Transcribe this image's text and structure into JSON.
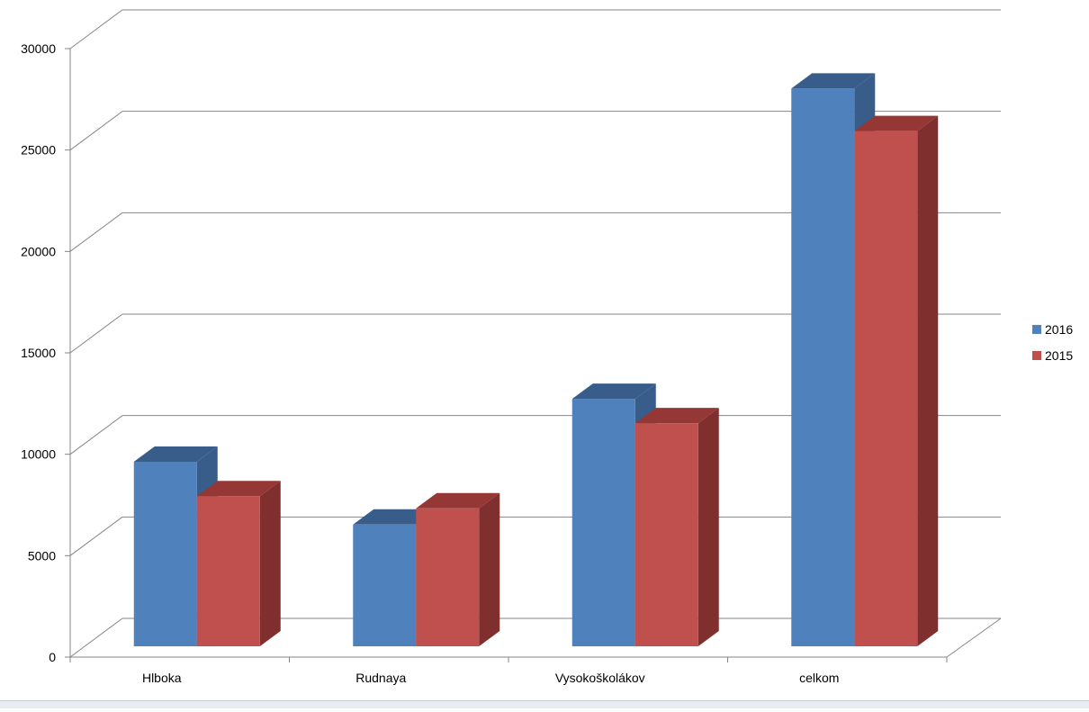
{
  "chart_data": {
    "type": "bar",
    "style": "3d-clustered-column",
    "categories": [
      "Hlboka",
      "Rudnaya",
      "Vysokoškolákov",
      "celkom"
    ],
    "series": [
      {
        "name": "2016",
        "color": "#4f81bd",
        "top_color": "#385d8a",
        "side_color": "#385d8a",
        "values": [
          9100,
          6000,
          12200,
          27500
        ]
      },
      {
        "name": "2015",
        "color": "#c0504d",
        "top_color": "#953735",
        "side_color": "#7f2f2e",
        "values": [
          7400,
          6800,
          11000,
          25400
        ]
      }
    ],
    "y_ticks": [
      "0",
      "5000",
      "10000",
      "15000",
      "20000",
      "25000",
      "30000"
    ],
    "ylim": [
      0,
      30000
    ],
    "grid": true,
    "legend_position": "right",
    "title": "",
    "xlabel": "",
    "ylabel": ""
  }
}
